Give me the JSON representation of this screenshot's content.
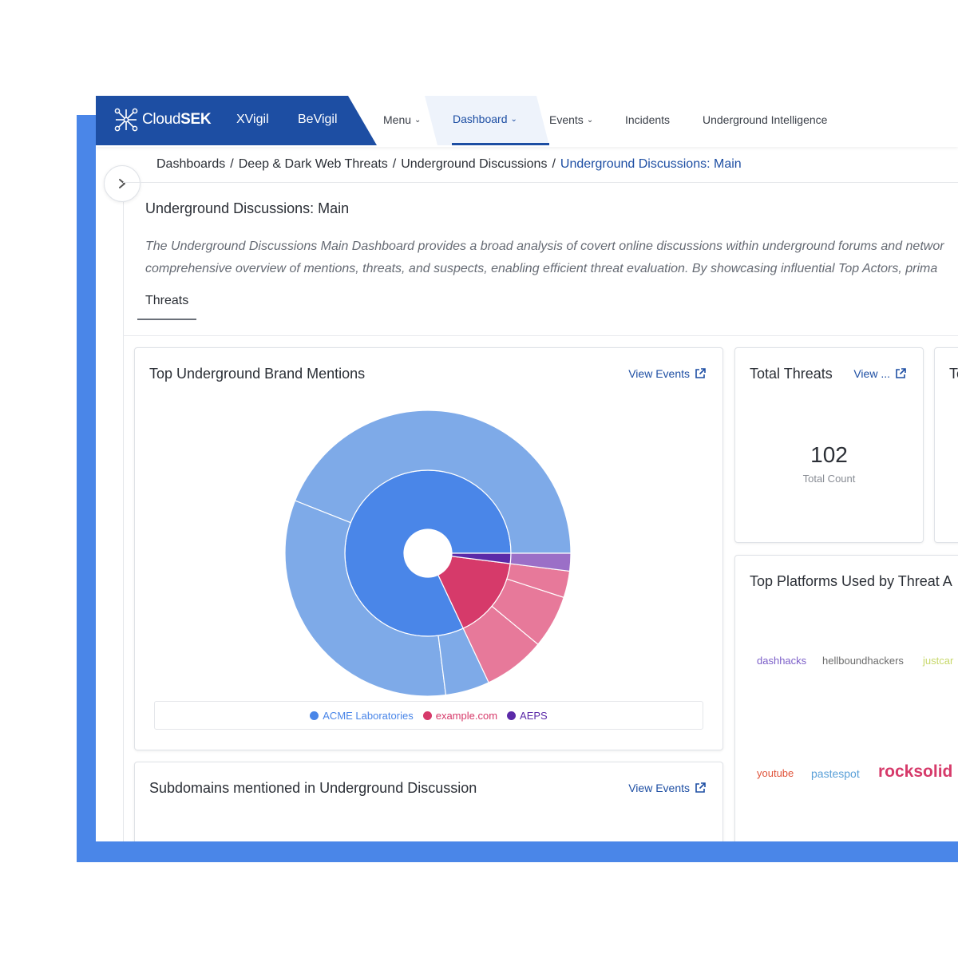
{
  "brand": {
    "logo_prefix": "Cloud",
    "logo_bold": "SEK",
    "products": [
      "XVigil",
      "BeVigil"
    ]
  },
  "nav": {
    "items": [
      {
        "label": "Menu",
        "dropdown": true
      },
      {
        "label": "Dashboard",
        "dropdown": true,
        "active": true
      },
      {
        "label": "Events",
        "dropdown": true
      },
      {
        "label": "Incidents",
        "dropdown": false
      },
      {
        "label": "Underground Intelligence",
        "dropdown": false
      }
    ]
  },
  "breadcrumb": {
    "items": [
      "Dashboards",
      "Deep & Dark Web Threats",
      "Underground Discussions"
    ],
    "separator": "/",
    "current": "Underground Discussions: Main"
  },
  "page": {
    "title": "Underground Discussions: Main",
    "description_line1": "The Underground Discussions Main Dashboard provides a broad analysis of covert online discussions within underground forums and networ",
    "description_line2": "comprehensive overview of mentions, threats, and suspects, enabling efficient threat evaluation. By showcasing influential Top Actors, prima",
    "tabs": [
      {
        "label": "Threats",
        "active": true
      }
    ]
  },
  "cards": {
    "brand_mentions": {
      "title": "Top Underground Brand Mentions",
      "link": "View Events",
      "legend": [
        {
          "label": "ACME Laboratories",
          "color": "#4a86e8"
        },
        {
          "label": "example.com",
          "color": "#d63a6a"
        },
        {
          "label": "AEPS",
          "color": "#5b2aa8"
        }
      ]
    },
    "total_threats": {
      "title": "Total Threats",
      "link": "View ...",
      "value": "102",
      "label": "Total Count"
    },
    "next_card_title": "To",
    "platforms": {
      "title": "Top Platforms Used by Threat A",
      "words": [
        {
          "text": "dashhacks",
          "color": "#7b5ec8"
        },
        {
          "text": "hellboundhackers",
          "color": "#6b6b6b"
        },
        {
          "text": "justcar",
          "color": "#c7d86a"
        },
        {
          "text": "youtube",
          "color": "#e0533a"
        },
        {
          "text": "pastespot",
          "color": "#5aa0d8"
        },
        {
          "text": "rocksolid",
          "color": "#d63a6a"
        }
      ]
    },
    "subdomains": {
      "title": "Subdomains mentioned in Underground Discussion",
      "link": "View Events"
    }
  },
  "chart_data": {
    "type": "pie",
    "title": "Top Underground Brand Mentions",
    "inner_ring": [
      {
        "name": "ACME Laboratories",
        "value": 82,
        "color": "#4a86e8"
      },
      {
        "name": "example.com",
        "value": 16,
        "color": "#d63a6a"
      },
      {
        "name": "AEPS",
        "value": 2,
        "color": "#5b2aa8"
      }
    ],
    "outer_ring": [
      {
        "parent": "ACME Laboratories",
        "value": 44,
        "color": "#7eaae8"
      },
      {
        "parent": "ACME Laboratories",
        "value": 33,
        "color": "#7eaae8"
      },
      {
        "parent": "ACME Laboratories",
        "value": 5,
        "color": "#7eaae8"
      },
      {
        "parent": "example.com",
        "value": 7,
        "color": "#e7799a"
      },
      {
        "parent": "example.com",
        "value": 6,
        "color": "#e7799a"
      },
      {
        "parent": "example.com",
        "value": 3,
        "color": "#e7799a"
      },
      {
        "parent": "AEPS",
        "value": 2,
        "color": "#9b6fc7"
      }
    ],
    "legend_position": "bottom"
  }
}
